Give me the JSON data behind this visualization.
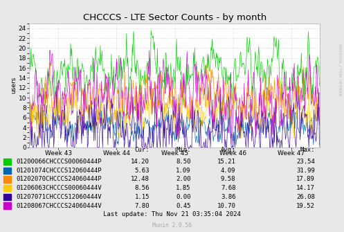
{
  "title": "CHCCCS - LTE Sector Counts - by month",
  "ylabel": "users",
  "x_labels": [
    "Week 43",
    "Week 44",
    "Week 45",
    "Week 46",
    "Week 47"
  ],
  "ylim": [
    0,
    25
  ],
  "yticks": [
    0,
    2,
    4,
    6,
    8,
    10,
    12,
    14,
    16,
    18,
    20,
    22,
    24
  ],
  "bg_color": "#e8e8e8",
  "plot_bg_color": "#ffffff",
  "grid_color": "#cccccc",
  "series": [
    {
      "label": "01200066CHCCCS00060444P",
      "color": "#00cc00",
      "cur": 14.2,
      "min": 8.5,
      "avg": 15.21,
      "max": 23.54
    },
    {
      "label": "01201074CHCCCS12060444P",
      "color": "#0066b3",
      "cur": 5.63,
      "min": 1.09,
      "avg": 4.09,
      "max": 31.99
    },
    {
      "label": "01202070CHCCCS24060444P",
      "color": "#ff8800",
      "cur": 12.48,
      "min": 2.0,
      "avg": 9.58,
      "max": 17.89
    },
    {
      "label": "01206063CHCCCS00060444V",
      "color": "#ffcc00",
      "cur": 8.56,
      "min": 1.85,
      "avg": 7.68,
      "max": 14.17
    },
    {
      "label": "01207071CHCCCS12060444V",
      "color": "#330099",
      "cur": 1.15,
      "min": 0.0,
      "avg": 3.86,
      "max": 26.08
    },
    {
      "label": "01208067CHCCCS24060444V",
      "color": "#cc00cc",
      "cur": 7.8,
      "min": 0.45,
      "avg": 10.7,
      "max": 19.52
    }
  ],
  "n_points": 500,
  "last_update": "Last update: Thu Nov 21 03:35:04 2024",
  "munin_version": "Munin 2.0.56",
  "rrdtool_label": "RRDTOOL / TOBI OETIKER",
  "title_fontsize": 9.5,
  "axis_fontsize": 6.5,
  "table_fontsize": 6.5
}
